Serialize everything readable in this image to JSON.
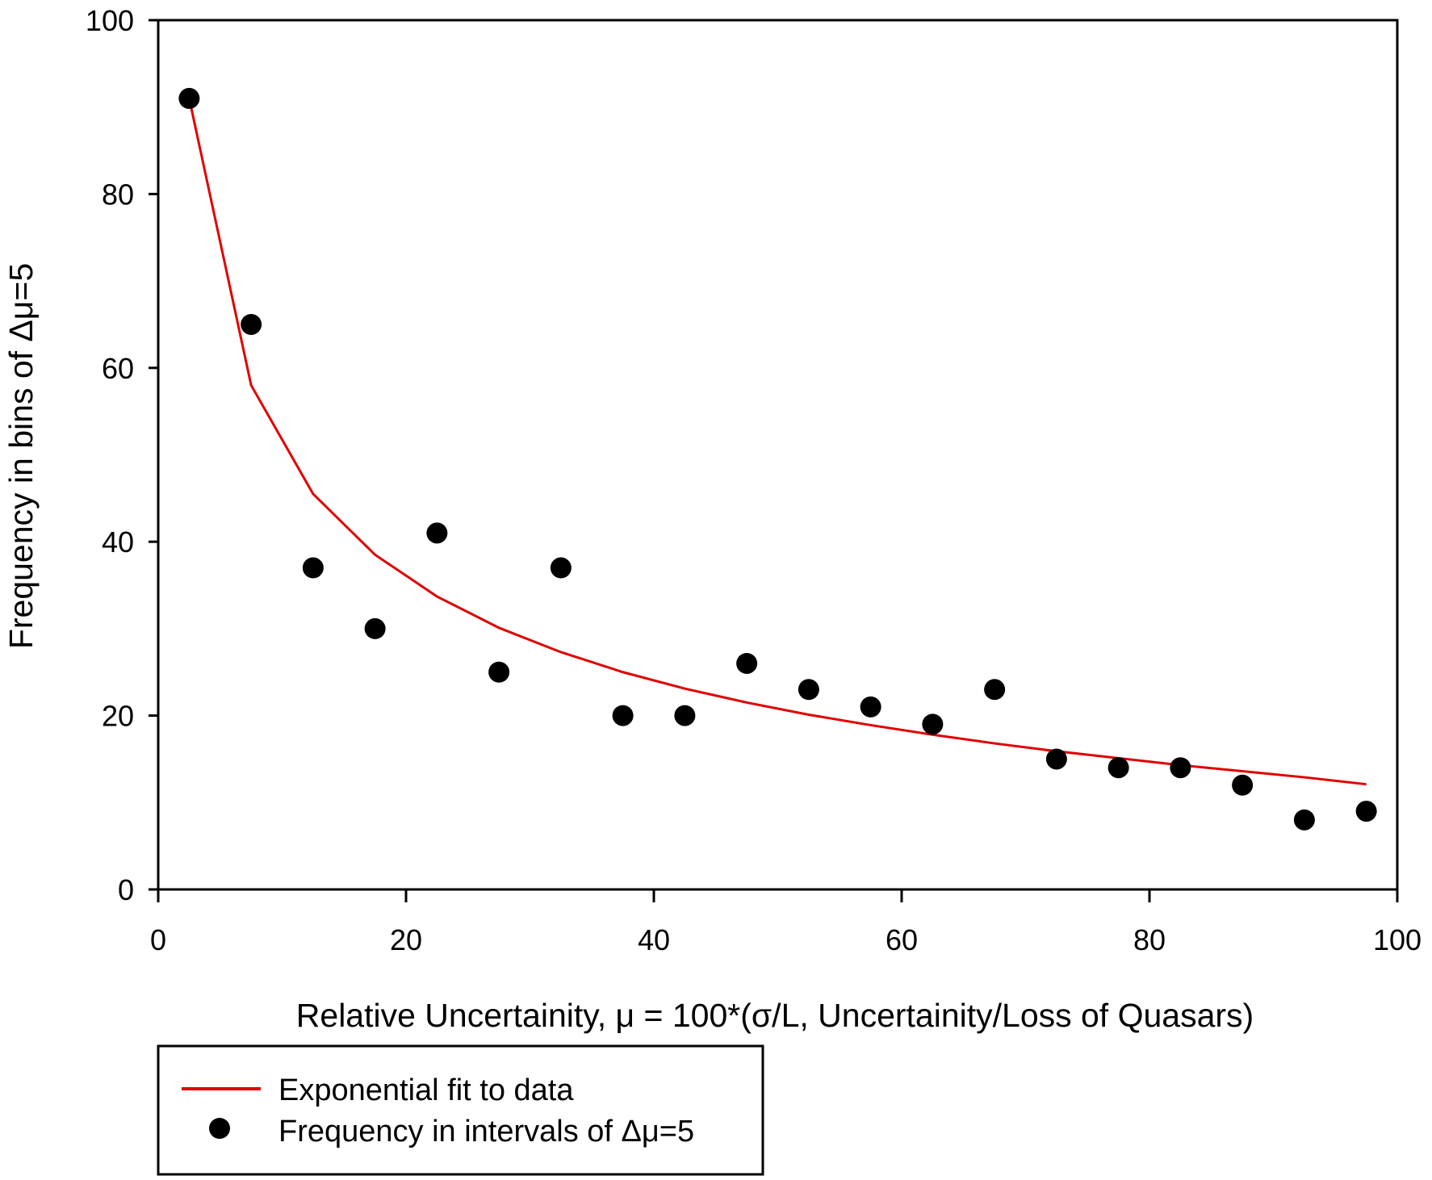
{
  "chart_data": {
    "type": "scatter",
    "title": "",
    "xlabel": "Relative Uncertainity, μ = 100*(σ/L, Uncertainity/Loss of Quasars)",
    "ylabel": "Frequency in bins of Δμ=5",
    "xlim": [
      0,
      100
    ],
    "ylim": [
      0,
      100
    ],
    "xticks": [
      "0",
      "20",
      "40",
      "60",
      "80",
      "100"
    ],
    "yticks": [
      "0",
      "20",
      "40",
      "60",
      "80",
      "100"
    ],
    "grid": false,
    "legend_position": "bottom-left",
    "x": [
      2.5,
      7.5,
      12.5,
      17.5,
      22.5,
      27.5,
      32.5,
      37.5,
      42.5,
      47.5,
      52.5,
      57.5,
      62.5,
      67.5,
      72.5,
      77.5,
      82.5,
      87.5,
      92.5,
      97.5
    ],
    "series": [
      {
        "name": "Exponential fit to data",
        "kind": "line",
        "color": "#e00000",
        "values": [
          91,
          58,
          45.5,
          38.5,
          33.7,
          30.1,
          27.3,
          25.0,
          23.1,
          21.5,
          20.1,
          18.9,
          17.8,
          16.8,
          15.9,
          15.1,
          14.3,
          13.6,
          12.9,
          12.1
        ]
      },
      {
        "name": "Frequency in intervals of Δμ=5",
        "kind": "scatter",
        "color": "#000000",
        "values": [
          91,
          65,
          37,
          30,
          41,
          25,
          37,
          20,
          20,
          26,
          23,
          21,
          19,
          23,
          15,
          14,
          14,
          12,
          8,
          9
        ]
      }
    ]
  }
}
